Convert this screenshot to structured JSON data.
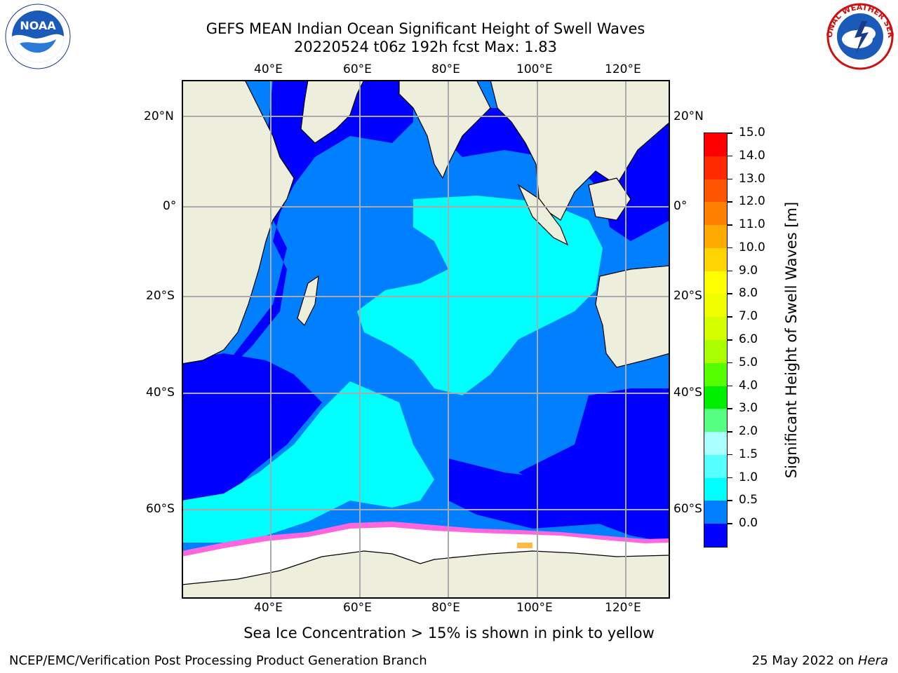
{
  "title": {
    "line1": "GEFS MEAN Indian Ocean Significant Height of Swell Waves",
    "line2": "20220524 t06z 192h fcst   Max: 1.83"
  },
  "logos": {
    "left": {
      "name": "NOAA",
      "ring_text": "NATIONAL OCEANIC AND ATMOSPHERIC ADMINISTRATION · U.S. DEPARTMENT OF COMMERCE"
    },
    "right": {
      "name": "NATIONAL WEATHER SERVICE"
    }
  },
  "map": {
    "lon_ticks": [
      "40°E",
      "60°E",
      "80°E",
      "100°E",
      "120°E"
    ],
    "lat_ticks": [
      "20°N",
      "0°",
      "20°S",
      "40°S",
      "60°S"
    ],
    "lon_range": [
      20,
      130
    ],
    "lat_range": [
      -73,
      28
    ],
    "colors": {
      "ocean_deep": "#0000ff",
      "ocean_mid": "#0080ff",
      "ocean_light": "#00ffff",
      "land": "#eeeedd",
      "ice": "#ffffff",
      "ice_edge_pink": "#ff66dd",
      "ice_edge_yellow": "#ffbb44",
      "grid": "#aaaaaa"
    }
  },
  "colorbar": {
    "title": "Significant Height of Swell Waves [m]",
    "ticks": [
      "15.0",
      "14.0",
      "13.0",
      "12.0",
      "11.0",
      "10.0",
      "9.0",
      "8.0",
      "7.0",
      "6.0",
      "5.0",
      "4.0",
      "3.0",
      "2.0",
      "1.5",
      "1.0",
      "0.5",
      "0.0"
    ],
    "colors_top_to_bottom": [
      "#ff0000",
      "#ff2a00",
      "#ff5500",
      "#ff8000",
      "#ffaa00",
      "#ffd400",
      "#ffff00",
      "#f0ff00",
      "#d4ff00",
      "#aaff00",
      "#55ff00",
      "#00ee00",
      "#55ff7f",
      "#aaffff",
      "#55ffff",
      "#00ffff",
      "#0080ff",
      "#0000ff"
    ]
  },
  "note": "Sea Ice Concentration > 15% is shown in pink to yellow",
  "footer": {
    "left": "NCEP/EMC/Verification Post Processing Product Generation Branch",
    "date": "25 May 2022 on",
    "machine": "Hera"
  }
}
